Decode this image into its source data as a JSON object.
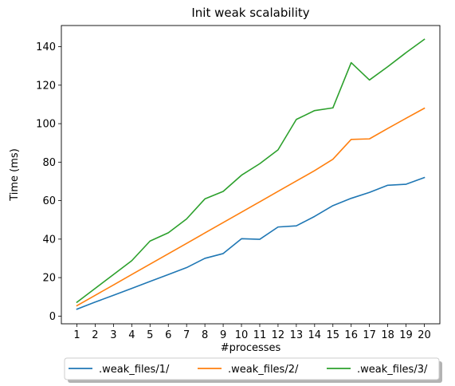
{
  "chart_data": {
    "type": "line",
    "title": "Init weak scalability",
    "xlabel": "#processes",
    "ylabel": "Time (ms)",
    "x": [
      1,
      2,
      3,
      4,
      5,
      6,
      7,
      8,
      9,
      10,
      11,
      12,
      13,
      14,
      15,
      16,
      17,
      18,
      19,
      20
    ],
    "xlim": [
      0.15,
      20.85
    ],
    "ylim": [
      -4,
      151
    ],
    "yticks": [
      0,
      20,
      40,
      60,
      80,
      100,
      120,
      140
    ],
    "grid": false,
    "legend_position": "bottom-center (below axes, 3 columns, shadow)",
    "series": [
      {
        "name": ".weak_files/1/",
        "color": "#1f77b4",
        "values": [
          3.6,
          7.3,
          10.8,
          14.4,
          18.0,
          21.6,
          25.2,
          30.0,
          32.5,
          40.2,
          39.9,
          46.3,
          46.9,
          51.8,
          57.4,
          61.2,
          64.3,
          68.0,
          68.5,
          72.0
        ]
      },
      {
        "name": ".weak_files/2/",
        "color": "#ff7f0e",
        "values": [
          5.4,
          10.8,
          16.2,
          21.6,
          27.0,
          32.4,
          37.8,
          43.2,
          48.6,
          54.0,
          59.4,
          64.8,
          70.2,
          75.6,
          81.5,
          91.8,
          92.1,
          97.5,
          102.8,
          108.0
        ]
      },
      {
        "name": ".weak_files/3/",
        "color": "#2ca02c",
        "values": [
          7.2,
          14.4,
          21.6,
          28.8,
          39.0,
          43.3,
          50.5,
          60.9,
          64.8,
          73.2,
          79.2,
          86.4,
          102.2,
          106.8,
          108.2,
          131.7,
          122.7,
          129.6,
          136.9,
          143.8
        ]
      }
    ]
  }
}
